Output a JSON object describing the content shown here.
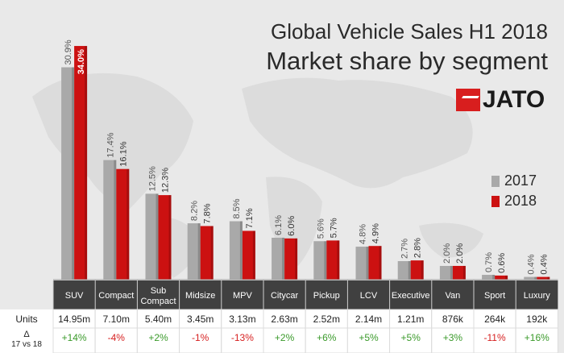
{
  "title_line1": "Global Vehicle Sales H1 2018",
  "title_line2": "Market share by segment",
  "logo_text": "JATO",
  "colors": {
    "series_2017": "#a9a9a9",
    "series_2018": "#cc1111",
    "header_bg": "#404040",
    "positive": "#3a9a2a",
    "negative": "#d61f1f"
  },
  "table_labels": {
    "units": "Units",
    "delta_line1": "Δ",
    "delta_line2": "17 vs 18"
  },
  "chart_data": {
    "type": "bar",
    "categories": [
      "SUV",
      "Compact",
      "Sub Compact",
      "Midsize",
      "MPV",
      "Citycar",
      "Pickup",
      "LCV",
      "Executive",
      "Van",
      "Sport",
      "Luxury"
    ],
    "series": [
      {
        "name": "2017",
        "values": [
          30.9,
          17.4,
          12.5,
          8.2,
          8.5,
          6.1,
          5.6,
          4.8,
          2.7,
          2.0,
          0.7,
          0.4
        ],
        "labels": [
          "30.9%",
          "17.4%",
          "12.5%",
          "8.2%",
          "8.5%",
          "6.1%",
          "5.6%",
          "4.8%",
          "2.7%",
          "2.0%",
          "0.7%",
          "0.4%"
        ]
      },
      {
        "name": "2018",
        "values": [
          34.0,
          16.1,
          12.3,
          7.8,
          7.1,
          6.0,
          5.7,
          4.9,
          2.8,
          2.0,
          0.6,
          0.4
        ],
        "labels": [
          "34.0%",
          "16.1%",
          "12.3%",
          "7.8%",
          "7.1%",
          "6.0%",
          "5.7%",
          "4.9%",
          "2.8%",
          "2.0%",
          "0.6%",
          "0.4%"
        ]
      }
    ],
    "units": [
      "14.95m",
      "7.10m",
      "5.40m",
      "3.45m",
      "3.13m",
      "2.63m",
      "2.52m",
      "2.14m",
      "1.21m",
      "876k",
      "264k",
      "192k"
    ],
    "change": [
      "+14%",
      "-4%",
      "+2%",
      "-1%",
      "-13%",
      "+2%",
      "+6%",
      "+5%",
      "+5%",
      "+3%",
      "-11%",
      "+16%"
    ],
    "ylim": [
      0,
      36
    ],
    "legend_position": "right"
  }
}
